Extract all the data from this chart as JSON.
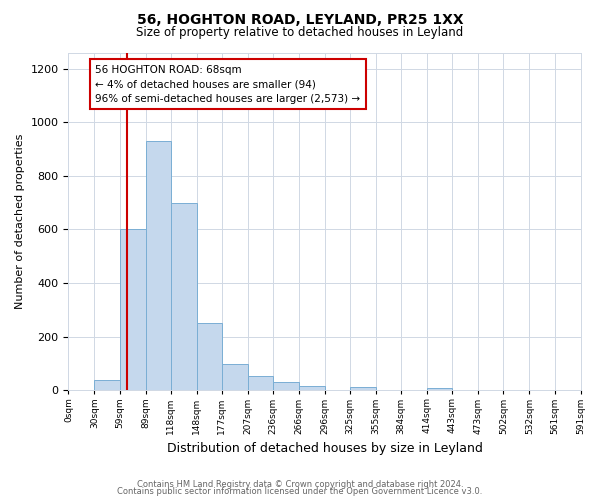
{
  "title": "56, HOGHTON ROAD, LEYLAND, PR25 1XX",
  "subtitle": "Size of property relative to detached houses in Leyland",
  "xlabel": "Distribution of detached houses by size in Leyland",
  "ylabel": "Number of detached properties",
  "bar_color": "#c5d8ed",
  "bar_edge_color": "#7aaed4",
  "background_color": "#ffffff",
  "grid_color": "#d0d8e4",
  "annotation_box_color": "#ffffff",
  "annotation_box_edge": "#cc0000",
  "red_line_color": "#cc0000",
  "bin_edges": [
    0,
    30,
    59,
    89,
    118,
    148,
    177,
    207,
    236,
    266,
    296,
    325,
    355,
    384,
    414,
    443,
    473,
    502,
    532,
    561,
    591
  ],
  "bin_counts": [
    0,
    40,
    600,
    930,
    700,
    250,
    100,
    55,
    32,
    18,
    0,
    12,
    0,
    0,
    10,
    0,
    0,
    0,
    0,
    0
  ],
  "tick_labels": [
    "0sqm",
    "30sqm",
    "59sqm",
    "89sqm",
    "118sqm",
    "148sqm",
    "177sqm",
    "207sqm",
    "236sqm",
    "266sqm",
    "296sqm",
    "325sqm",
    "355sqm",
    "384sqm",
    "414sqm",
    "443sqm",
    "473sqm",
    "502sqm",
    "532sqm",
    "561sqm",
    "591sqm"
  ],
  "ylim": [
    0,
    1260
  ],
  "yticks": [
    0,
    200,
    400,
    600,
    800,
    1000,
    1200
  ],
  "red_line_x": 68,
  "annotation_line1": "56 HOGHTON ROAD: 68sqm",
  "annotation_line2": "← 4% of detached houses are smaller (94)",
  "annotation_line3": "96% of semi-detached houses are larger (2,573) →",
  "footer_line1": "Contains HM Land Registry data © Crown copyright and database right 2024.",
  "footer_line2": "Contains public sector information licensed under the Open Government Licence v3.0."
}
